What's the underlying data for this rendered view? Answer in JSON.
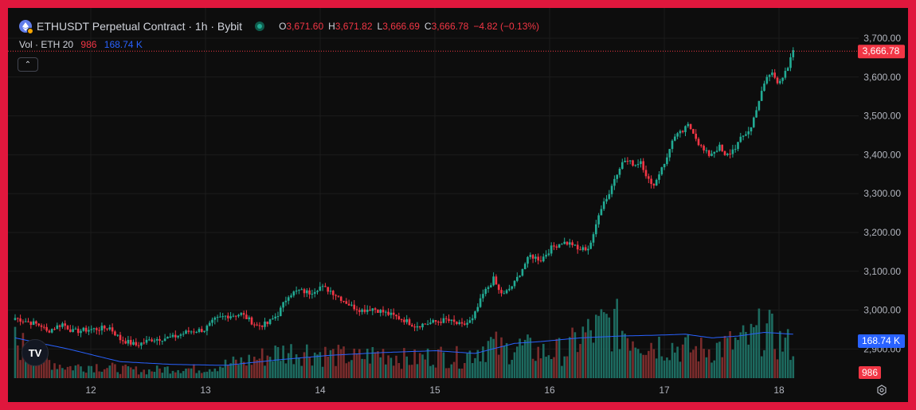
{
  "header": {
    "symbol_title": "ETHUSDT Perpetual Contract · 1h · Bybit",
    "o_label": "O",
    "o_value": "3,671.60",
    "h_label": "H",
    "h_value": "3,671.82",
    "l_label": "L",
    "l_value": "3,666.69",
    "c_label": "C",
    "c_value": "3,666.78",
    "change": "−4.82 (−0.13%)",
    "logo_icon": "ethereum-logo-icon",
    "live_icon": "market-open-dot-icon"
  },
  "volume_legend": {
    "label": "Vol · ETH",
    "ma_length": "20",
    "volume_value": "986",
    "ma_value": "168.74 K"
  },
  "colors": {
    "up": "#22ab94",
    "down": "#f23645",
    "background": "#0d0d0d",
    "grid": "#1c1c1c",
    "ma_line": "#2962ff",
    "frame": "#e0173d",
    "up_volume": "#1d6b60",
    "down_volume": "#7a2c2c"
  },
  "chart_data": {
    "type": "candlestick",
    "price_axis": {
      "ticks": [
        2900,
        3000,
        3100,
        3200,
        3300,
        3400,
        3500,
        3600,
        3700
      ],
      "tick_labels": [
        "2,900.00",
        "3,000.00",
        "3,100.00",
        "3,200.00",
        "3,300.00",
        "3,400.00",
        "3,500.00",
        "3,600.00",
        "3,700.00"
      ],
      "range": [
        2880,
        3705
      ]
    },
    "time_axis": {
      "labels": [
        "12",
        "13",
        "14",
        "15",
        "16",
        "17",
        "18"
      ]
    },
    "last_price_label": "3,666.78",
    "volume_label": "986",
    "ma_label": "168.74 K",
    "grid": true,
    "price_keypoints": [
      [
        0,
        2980
      ],
      [
        10,
        2960
      ],
      [
        12,
        2945
      ],
      [
        18,
        2965
      ],
      [
        22,
        2945
      ],
      [
        28,
        2950
      ],
      [
        36,
        2955
      ],
      [
        40,
        2925
      ],
      [
        46,
        2910
      ],
      [
        52,
        2925
      ],
      [
        60,
        2930
      ],
      [
        66,
        2945
      ],
      [
        72,
        2950
      ],
      [
        76,
        2975
      ],
      [
        80,
        2985
      ],
      [
        86,
        2990
      ],
      [
        92,
        2960
      ],
      [
        96,
        2965
      ],
      [
        100,
        2990
      ],
      [
        104,
        3040
      ],
      [
        108,
        3050
      ],
      [
        112,
        3045
      ],
      [
        116,
        3060
      ],
      [
        120,
        3050
      ],
      [
        124,
        3030
      ],
      [
        128,
        3010
      ],
      [
        132,
        3000
      ],
      [
        136,
        3005
      ],
      [
        140,
        2995
      ],
      [
        144,
        2985
      ],
      [
        148,
        2975
      ],
      [
        152,
        2960
      ],
      [
        156,
        2965
      ],
      [
        160,
        2970
      ],
      [
        164,
        2975
      ],
      [
        166,
        2970
      ],
      [
        170,
        2960
      ],
      [
        174,
        2975
      ],
      [
        178,
        3040
      ],
      [
        180,
        3060
      ],
      [
        182,
        3080
      ],
      [
        184,
        3050
      ],
      [
        186,
        3040
      ],
      [
        190,
        3070
      ],
      [
        194,
        3120
      ],
      [
        196,
        3140
      ],
      [
        200,
        3130
      ],
      [
        204,
        3160
      ],
      [
        208,
        3175
      ],
      [
        212,
        3170
      ],
      [
        214,
        3155
      ],
      [
        218,
        3160
      ],
      [
        220,
        3190
      ],
      [
        222,
        3250
      ],
      [
        224,
        3280
      ],
      [
        226,
        3300
      ],
      [
        228,
        3340
      ],
      [
        230,
        3370
      ],
      [
        232,
        3385
      ],
      [
        234,
        3380
      ],
      [
        236,
        3375
      ],
      [
        238,
        3385
      ],
      [
        240,
        3350
      ],
      [
        242,
        3320
      ],
      [
        244,
        3335
      ],
      [
        246,
        3370
      ],
      [
        248,
        3390
      ],
      [
        250,
        3440
      ],
      [
        252,
        3450
      ],
      [
        254,
        3460
      ],
      [
        256,
        3475
      ],
      [
        258,
        3460
      ],
      [
        260,
        3430
      ],
      [
        262,
        3410
      ],
      [
        264,
        3400
      ],
      [
        266,
        3410
      ],
      [
        268,
        3420
      ],
      [
        270,
        3395
      ],
      [
        272,
        3405
      ],
      [
        274,
        3420
      ],
      [
        276,
        3440
      ],
      [
        278,
        3455
      ],
      [
        280,
        3470
      ],
      [
        282,
        3520
      ],
      [
        284,
        3560
      ],
      [
        286,
        3600
      ],
      [
        288,
        3610
      ],
      [
        290,
        3590
      ],
      [
        292,
        3600
      ],
      [
        294,
        3620
      ],
      [
        296,
        3670
      ]
    ],
    "volume_keypoints": [
      [
        0,
        40
      ],
      [
        10,
        22
      ],
      [
        20,
        12
      ],
      [
        30,
        14
      ],
      [
        40,
        10
      ],
      [
        50,
        8
      ],
      [
        60,
        11
      ],
      [
        70,
        10
      ],
      [
        80,
        15
      ],
      [
        90,
        20
      ],
      [
        100,
        28
      ],
      [
        110,
        30
      ],
      [
        120,
        25
      ],
      [
        130,
        22
      ],
      [
        140,
        28
      ],
      [
        150,
        20
      ],
      [
        160,
        25
      ],
      [
        170,
        22
      ],
      [
        180,
        38
      ],
      [
        186,
        30
      ],
      [
        190,
        35
      ],
      [
        200,
        28
      ],
      [
        210,
        30
      ],
      [
        215,
        45
      ],
      [
        220,
        50
      ],
      [
        226,
        60
      ],
      [
        230,
        55
      ],
      [
        240,
        40
      ],
      [
        250,
        35
      ],
      [
        260,
        30
      ],
      [
        270,
        35
      ],
      [
        280,
        42
      ],
      [
        285,
        55
      ],
      [
        290,
        40
      ],
      [
        296,
        35
      ]
    ],
    "ma_keypoints": [
      [
        0,
        44
      ],
      [
        20,
        32
      ],
      [
        40,
        18
      ],
      [
        60,
        15
      ],
      [
        80,
        14
      ],
      [
        100,
        20
      ],
      [
        120,
        25
      ],
      [
        140,
        28
      ],
      [
        160,
        30
      ],
      [
        175,
        27
      ],
      [
        190,
        38
      ],
      [
        200,
        40
      ],
      [
        215,
        44
      ],
      [
        230,
        46
      ],
      [
        245,
        47
      ],
      [
        255,
        48
      ],
      [
        265,
        44
      ],
      [
        275,
        46
      ],
      [
        285,
        50
      ],
      [
        296,
        48
      ]
    ]
  }
}
